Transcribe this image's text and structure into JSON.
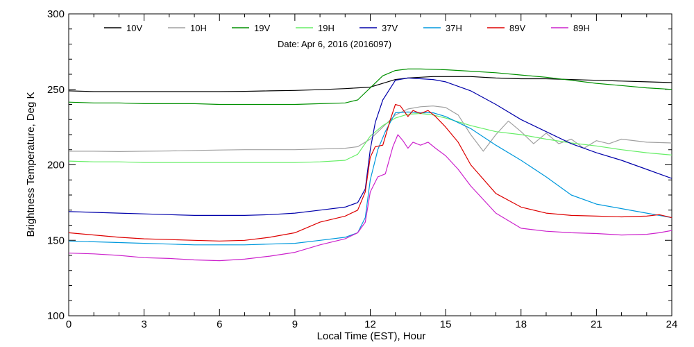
{
  "chart_data": {
    "type": "line",
    "annotation": "Date: Apr  6, 2016 (2016097)",
    "xlabel": "Local Time (EST), Hour",
    "ylabel": "Brightness Temperature, Deg K",
    "xlim": [
      0,
      24
    ],
    "ylim": [
      100,
      300
    ],
    "xticks": [
      0,
      3,
      6,
      9,
      12,
      15,
      18,
      21,
      24
    ],
    "yticks": [
      100,
      150,
      200,
      250,
      300
    ],
    "grid": false,
    "legend_position": "top",
    "series": [
      {
        "name": "10V",
        "color": "#000000",
        "x": [
          0,
          1,
          2,
          3,
          4,
          5,
          6,
          7,
          8,
          9,
          10,
          11,
          11.5,
          12,
          12.5,
          13,
          13.5,
          14,
          14.5,
          15,
          16,
          17,
          18,
          19,
          20,
          21,
          22,
          23,
          24
        ],
        "y": [
          249,
          248.5,
          248.5,
          248.5,
          248.5,
          248.5,
          248.5,
          248.7,
          249,
          249.3,
          249.8,
          250.5,
          251,
          251.5,
          254,
          256.5,
          257.5,
          258,
          258.5,
          258.5,
          258.5,
          257.5,
          257,
          257,
          256.5,
          256,
          255.5,
          255,
          254.5
        ]
      },
      {
        "name": "10H",
        "color": "#a0a0a0",
        "x": [
          0,
          1,
          2,
          3,
          4,
          5,
          6,
          7,
          8,
          9,
          10,
          11,
          11.5,
          12,
          12.5,
          13,
          13.5,
          14,
          14.5,
          15,
          15.5,
          16,
          16.5,
          17,
          17.5,
          18,
          18.5,
          19,
          19.5,
          20,
          20.5,
          21,
          21.5,
          22,
          23,
          24
        ],
        "y": [
          209,
          209,
          208.8,
          209,
          209.2,
          209.5,
          209.8,
          210,
          210,
          210,
          210.5,
          211,
          212,
          217,
          225,
          233,
          237,
          238.5,
          239,
          238,
          233,
          220,
          209,
          220,
          229,
          222,
          214,
          221,
          214,
          217,
          211,
          216,
          214,
          217,
          215,
          214.5
        ]
      },
      {
        "name": "19V",
        "color": "#009000",
        "x": [
          0,
          1,
          2,
          3,
          4,
          5,
          6,
          7,
          8,
          9,
          10,
          11,
          11.5,
          12,
          12.5,
          13,
          13.5,
          14,
          15,
          16,
          17,
          18,
          19,
          20,
          21,
          22,
          23,
          24
        ],
        "y": [
          241.5,
          241,
          241,
          240.5,
          240.5,
          240.5,
          240,
          240,
          240,
          240,
          240.5,
          241,
          243,
          251,
          259,
          262.5,
          263.5,
          263.5,
          263,
          262,
          261,
          259.5,
          258,
          256,
          254,
          252.5,
          251,
          250
        ]
      },
      {
        "name": "19H",
        "color": "#66ee66",
        "x": [
          0,
          1,
          2,
          3,
          4,
          5,
          6,
          7,
          8,
          9,
          10,
          11,
          11.5,
          12,
          12.5,
          13,
          13.5,
          14,
          14.5,
          15,
          16,
          17,
          18,
          19,
          20,
          21,
          22,
          23,
          24
        ],
        "y": [
          202.5,
          202,
          202,
          201.5,
          201.5,
          201.5,
          201.5,
          201.5,
          201.5,
          201.5,
          202,
          203,
          207,
          219,
          226,
          231,
          233.5,
          234,
          233,
          231,
          226,
          222,
          220,
          217,
          214.5,
          212.5,
          210,
          208,
          206.5
        ]
      },
      {
        "name": "37V",
        "color": "#0000aa",
        "x": [
          0,
          1,
          2,
          3,
          4,
          5,
          6,
          7,
          8,
          9,
          10,
          11,
          11.5,
          11.8,
          12,
          12.2,
          12.5,
          13,
          13.5,
          14,
          14.5,
          15,
          16,
          17,
          18,
          19,
          20,
          21,
          22,
          23,
          24
        ],
        "y": [
          169,
          168.5,
          168,
          167.5,
          167,
          166.5,
          166.5,
          166.5,
          167,
          168,
          170,
          172,
          175,
          184,
          210,
          228,
          243,
          256,
          257.5,
          257,
          256.5,
          255,
          249,
          240,
          230,
          222,
          214,
          208,
          203,
          197,
          191
        ]
      },
      {
        "name": "37H",
        "color": "#0099dd",
        "x": [
          0,
          1,
          2,
          3,
          4,
          5,
          6,
          7,
          8,
          9,
          10,
          11,
          11.5,
          11.8,
          12,
          12.3,
          12.6,
          13,
          13.5,
          14,
          14.5,
          15,
          16,
          17,
          18,
          19,
          20,
          21,
          22,
          23,
          24
        ],
        "y": [
          149.5,
          149,
          148.5,
          148,
          147.5,
          147,
          147,
          147,
          147.5,
          148,
          150,
          152,
          155,
          165,
          190,
          210,
          222,
          234.5,
          235,
          234.5,
          234.5,
          232,
          224,
          213,
          203,
          192,
          180,
          174,
          171,
          168,
          165
        ]
      },
      {
        "name": "89V",
        "color": "#dd0000",
        "x": [
          0,
          1,
          2,
          3,
          4,
          5,
          6,
          7,
          8,
          9,
          10,
          11,
          11.5,
          11.8,
          12,
          12.2,
          12.5,
          12.8,
          13,
          13.2,
          13.5,
          13.7,
          14,
          14.3,
          14.6,
          15,
          15.5,
          16,
          17,
          18,
          19,
          20,
          21,
          22,
          23,
          23.5,
          24
        ],
        "y": [
          155,
          153.5,
          152,
          151,
          150.5,
          150,
          149.5,
          150,
          152,
          155,
          162,
          166,
          170,
          182,
          205,
          212,
          213,
          230,
          240,
          239,
          232,
          236,
          234,
          236,
          232,
          225,
          215,
          200,
          181,
          172,
          168,
          166.5,
          166,
          165.5,
          166,
          167,
          165
        ]
      },
      {
        "name": "89H",
        "color": "#cc22cc",
        "x": [
          0,
          1,
          2,
          3,
          4,
          5,
          6,
          7,
          8,
          9,
          10,
          11,
          11.5,
          11.8,
          12,
          12.3,
          12.6,
          12.9,
          13.1,
          13.3,
          13.5,
          13.7,
          14,
          14.3,
          14.6,
          15,
          15.5,
          16,
          17,
          18,
          19,
          20,
          21,
          22,
          23,
          23.5,
          24
        ],
        "y": [
          141.5,
          141,
          140,
          138.5,
          138,
          137,
          136.5,
          137.5,
          139.5,
          142,
          147,
          151,
          155,
          162,
          182,
          192,
          194,
          212,
          220,
          216,
          211,
          215,
          213,
          215,
          211,
          206,
          197,
          186,
          168,
          158,
          156,
          155,
          154.5,
          153.5,
          154,
          155,
          156.5
        ]
      }
    ]
  }
}
